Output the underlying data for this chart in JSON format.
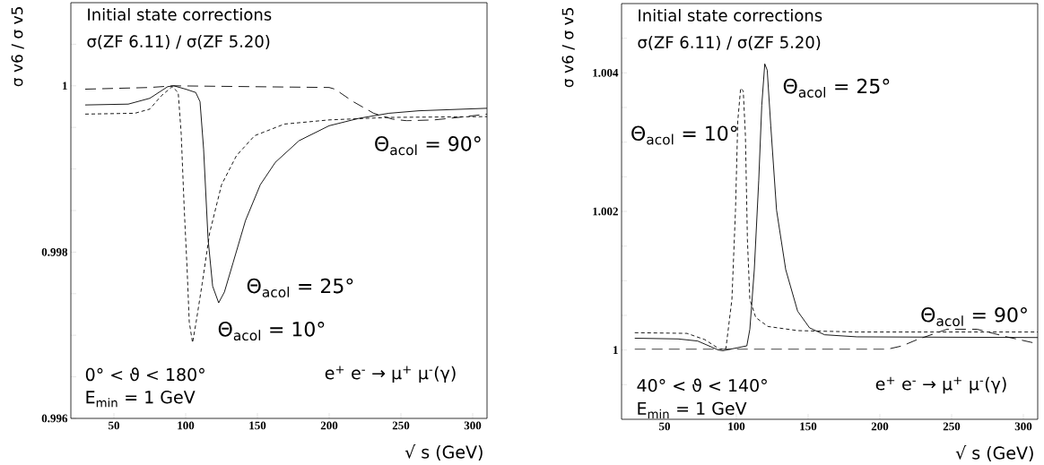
{
  "chart_data": [
    {
      "type": "line",
      "title": "Initial state corrections",
      "subtitle": "σ(ZF 6.11) / σ(ZF 5.20)",
      "xlabel": "√ s (GeV)",
      "ylabel": "σ v6 / σ v5",
      "annotations": [
        "0° < ϑ < 180°",
        "E$_{min}$ = 1 GeV",
        "e$^{+}$ e$^{-}$ → μ$^{+}$ μ$^{-}$(γ)"
      ],
      "xlim": [
        20,
        310
      ],
      "ylim": [
        0.996,
        1.001
      ],
      "xticks": [
        50,
        100,
        150,
        200,
        250,
        300
      ],
      "yticks": [
        0.996,
        {
          "value": 0.9965,
          "label": null
        },
        {
          "value": 0.997,
          "label": null
        },
        {
          "value": 0.9975,
          "label": null
        },
        0.998,
        {
          "value": 0.9985,
          "label": null
        },
        {
          "value": 0.999,
          "label": null
        },
        {
          "value": 0.9995,
          "label": null
        },
        1,
        {
          "value": 1.0005,
          "label": null
        }
      ],
      "series": [
        {
          "name": "Θ$_{acol}$ = 25°",
          "color": "#000000",
          "line_style": "solid",
          "x": [
            30,
            60,
            75,
            87.5,
            91.7,
            100,
            107,
            110,
            112.5,
            115.6,
            118.8,
            123,
            127,
            133,
            141.7,
            152,
            162.5,
            179,
            200,
            221,
            241.7,
            262.5,
            310
          ],
          "values": [
            0.99977,
            0.99978,
            0.99985,
            0.99999,
            1.0,
            0.99996,
            0.99992,
            0.99981,
            0.99924,
            0.99816,
            0.99759,
            0.99739,
            0.99752,
            0.99787,
            0.99838,
            0.99881,
            0.99908,
            0.99934,
            0.99952,
            0.99961,
            0.99967,
            0.9997,
            0.99973
          ]
        },
        {
          "name": "Θ$_{acol}$ = 10°",
          "color": "#000000",
          "line_style": "dashed",
          "x": [
            30,
            64.6,
            75,
            83,
            90.6,
            94.8,
            96.9,
            99,
            101,
            102.5,
            104.8,
            107.3,
            111.5,
            116.7,
            125,
            135.4,
            148,
            168.8,
            200,
            241.7,
            310
          ],
          "values": [
            0.99966,
            0.99967,
            0.99972,
            0.99988,
            0.99999,
            0.99992,
            0.99942,
            0.99852,
            0.9978,
            0.99716,
            0.99691,
            0.99716,
            0.99762,
            0.99823,
            0.99881,
            0.99916,
            0.9994,
            0.99954,
            0.99959,
            0.99962,
            0.99963
          ]
        },
        {
          "name": "Θ$_{acol}$ = 90°",
          "color": "#000000",
          "line_style": "dashed",
          "x": [
            30,
            75,
            91.7,
            200,
            204,
            216.7,
            231,
            244,
            254,
            273,
            290,
            310
          ],
          "values": [
            0.99996,
            0.99998,
            1.0,
            0.99998,
            0.99996,
            0.99981,
            0.99967,
            0.9996,
            0.99958,
            0.99959,
            0.99962,
            0.99966
          ]
        }
      ]
    },
    {
      "type": "line",
      "title": "Initial state corrections",
      "subtitle": "σ(ZF 6.11) / σ(ZF 5.20)",
      "xlabel": "√ s (GeV)",
      "ylabel": "σ v6 / σ v5",
      "annotations": [
        "40° < ϑ < 140°",
        "E$_{min}$ = 1 GeV",
        "e$^{+}$ e$^{-}$ → μ$^{+}$ μ$^{-}$(γ)"
      ],
      "xlim": [
        20,
        310
      ],
      "ylim": [
        0.999,
        1.005
      ],
      "xticks": [
        50,
        100,
        150,
        200,
        250,
        300
      ],
      "yticks": [
        {
          "value": 0.9995,
          "label": null
        },
        1,
        {
          "value": 1.0005,
          "label": null
        },
        {
          "value": 1.001,
          "label": null
        },
        {
          "value": 1.0015,
          "label": null
        },
        1.002,
        {
          "value": 1.0025,
          "label": null
        },
        {
          "value": 1.003,
          "label": null
        },
        {
          "value": 1.0035,
          "label": null
        },
        1.004,
        {
          "value": 1.0045,
          "label": null
        }
      ],
      "series": [
        {
          "name": "Θ$_{acol}$ = 25°",
          "color": "#000000",
          "line_style": "solid",
          "x": [
            29.2,
            59.4,
            73,
            87.5,
            90.6,
            107.3,
            109.4,
            112.5,
            115.6,
            117.7,
            119.8,
            121.5,
            124,
            128,
            134.4,
            142.7,
            151,
            161.5,
            184,
            310
          ],
          "values": [
            1.00017,
            1.00016,
            1.00013,
            1.0,
            0.99999,
            1.00006,
            1.0003,
            1.00116,
            1.00245,
            1.00353,
            1.00413,
            1.00404,
            1.00323,
            1.00202,
            1.00116,
            1.00056,
            1.00032,
            1.00022,
            1.00019,
            1.00018
          ]
        },
        {
          "name": "Θ$_{acol}$ = 10°",
          "color": "#000000",
          "line_style": "dashed",
          "x": [
            29.2,
            65.6,
            78,
            88.5,
            92.7,
            96.9,
            99.4,
            101,
            103,
            104.8,
            106.3,
            107.7,
            109.4,
            113.5,
            121.9,
            142.7,
            184,
            310
          ],
          "values": [
            1.00025,
            1.00024,
            1.00015,
            1.00001,
            1.00002,
            1.00073,
            1.00202,
            1.00331,
            1.00378,
            1.00374,
            1.0031,
            1.00159,
            1.00073,
            1.00047,
            1.00034,
            1.00028,
            1.00026,
            1.00026
          ]
        },
        {
          "name": "Θ$_{acol}$ = 90°",
          "color": "#000000",
          "line_style": "dashed",
          "x": [
            29.2,
            205,
            215.6,
            226,
            246.9,
            267.7,
            288.5,
            310
          ],
          "values": [
            1.00001,
            1.00001,
            1.00006,
            1.00015,
            1.0003,
            1.0003,
            1.00019,
            1.00009
          ]
        }
      ]
    }
  ]
}
